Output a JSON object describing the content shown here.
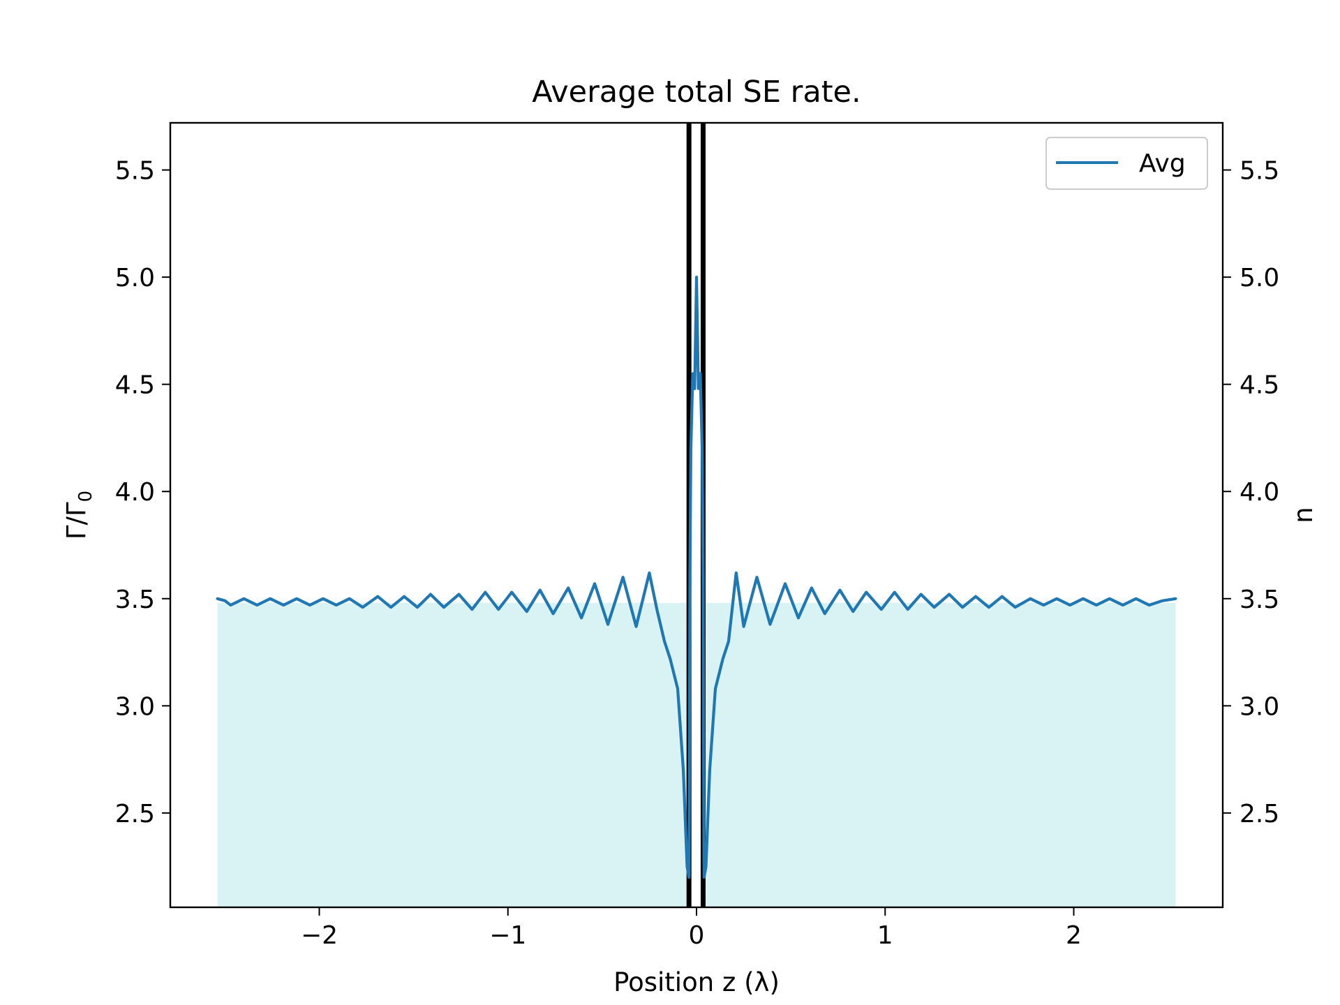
{
  "chart_data": {
    "type": "line",
    "title": "Average total SE rate.",
    "xlabel": "Position z (λ)",
    "ylabel": "Γ/Γ",
    "ylabel_subscript": "0",
    "ylabel_right": "n",
    "xlim": [
      -2.79,
      2.79
    ],
    "ylim": [
      2.06,
      5.72
    ],
    "xticks": [
      -2,
      -1,
      0,
      1,
      2
    ],
    "xtick_labels": [
      "−2",
      "−1",
      "0",
      "1",
      "2"
    ],
    "yticks": [
      2.5,
      3.0,
      3.5,
      4.0,
      4.5,
      5.0,
      5.5
    ],
    "ytick_labels": [
      "2.5",
      "3.0",
      "3.5",
      "4.0",
      "4.5",
      "5.0",
      "5.5"
    ],
    "yticks_right": [
      2.5,
      3.0,
      3.5,
      4.0,
      4.5,
      5.0,
      5.5
    ],
    "ytick_labels_right": [
      "2.5",
      "3.0",
      "3.5",
      "4.0",
      "4.5",
      "5.0",
      "5.5"
    ],
    "grid": false,
    "legend": {
      "position": "top-right",
      "entries": [
        "Avg"
      ]
    },
    "series": [
      {
        "name": "Avg",
        "color": "#1f77b4",
        "x": [
          -2.54,
          -2.5,
          -2.47,
          -2.4,
          -2.33,
          -2.26,
          -2.19,
          -2.12,
          -2.05,
          -1.98,
          -1.91,
          -1.84,
          -1.77,
          -1.69,
          -1.62,
          -1.55,
          -1.48,
          -1.41,
          -1.34,
          -1.26,
          -1.19,
          -1.12,
          -1.05,
          -0.98,
          -0.9,
          -0.83,
          -0.76,
          -0.68,
          -0.61,
          -0.54,
          -0.47,
          -0.39,
          -0.32,
          -0.25,
          -0.21,
          -0.17,
          -0.14,
          -0.1,
          -0.07,
          -0.05,
          -0.04,
          -0.038,
          -0.035,
          -0.03,
          -0.02,
          -0.01,
          0.0,
          0.01,
          0.02,
          0.03,
          0.035,
          0.038,
          0.04,
          0.05,
          0.07,
          0.1,
          0.14,
          0.17,
          0.21,
          0.25,
          0.32,
          0.39,
          0.47,
          0.54,
          0.61,
          0.68,
          0.76,
          0.83,
          0.9,
          0.98,
          1.05,
          1.12,
          1.19,
          1.26,
          1.34,
          1.41,
          1.48,
          1.55,
          1.62,
          1.69,
          1.77,
          1.84,
          1.91,
          1.98,
          2.05,
          2.12,
          2.19,
          2.26,
          2.33,
          2.4,
          2.47,
          2.54
        ],
        "values": [
          3.5,
          3.49,
          3.47,
          3.5,
          3.47,
          3.5,
          3.47,
          3.5,
          3.47,
          3.5,
          3.47,
          3.5,
          3.46,
          3.51,
          3.46,
          3.51,
          3.46,
          3.52,
          3.46,
          3.52,
          3.45,
          3.53,
          3.45,
          3.53,
          3.44,
          3.54,
          3.43,
          3.55,
          3.41,
          3.57,
          3.38,
          3.6,
          3.37,
          3.62,
          3.45,
          3.3,
          3.22,
          3.08,
          2.7,
          2.25,
          2.2,
          2.6,
          3.6,
          4.2,
          4.55,
          4.48,
          5.0,
          4.48,
          4.55,
          4.2,
          3.6,
          2.6,
          2.2,
          2.25,
          2.7,
          3.08,
          3.22,
          3.3,
          3.62,
          3.37,
          3.6,
          3.38,
          3.57,
          3.41,
          3.55,
          3.43,
          3.54,
          3.44,
          3.53,
          3.45,
          3.53,
          3.45,
          3.52,
          3.46,
          3.52,
          3.46,
          3.51,
          3.46,
          3.51,
          3.46,
          3.5,
          3.47,
          3.5,
          3.47,
          3.5,
          3.47,
          3.5,
          3.47,
          3.5,
          3.47,
          3.49,
          3.5
        ]
      }
    ],
    "regions": [
      {
        "x0": -2.54,
        "x1": -0.04,
        "y": 3.48,
        "color": "#d9f3f4"
      },
      {
        "x0": 0.04,
        "x1": 2.54,
        "y": 3.48,
        "color": "#d9f3f4"
      }
    ],
    "vertical_lines": [
      {
        "x": -0.04,
        "color": "#000000"
      },
      {
        "x": 0.035,
        "color": "#000000"
      }
    ]
  }
}
